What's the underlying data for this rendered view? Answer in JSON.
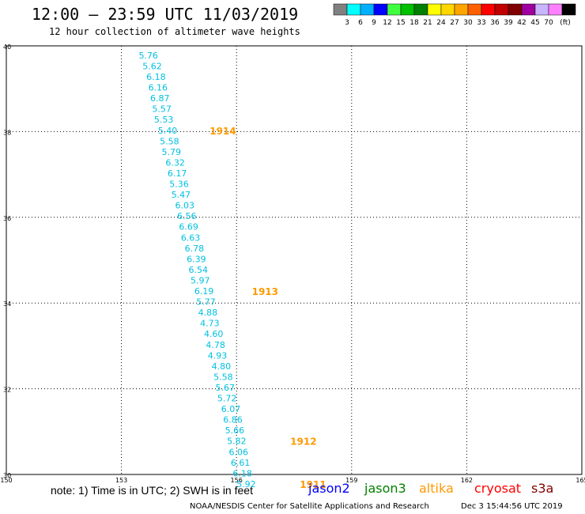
{
  "header": {
    "title": "12:00 – 23:59 UTC 11/03/2019",
    "subtitle": "12 hour collection of altimeter wave heights"
  },
  "legend": {
    "unit": "(ft)",
    "colors": [
      "#808080",
      "#00ffff",
      "#00b0ff",
      "#0000ff",
      "#40ff40",
      "#00c000",
      "#008000",
      "#ffff00",
      "#ffd700",
      "#ffa500",
      "#ff6000",
      "#ff0000",
      "#c00000",
      "#800000",
      "#a000a0",
      "#c8b4ff",
      "#ff80ff",
      "#000000"
    ],
    "labels": [
      "3",
      "6",
      "9",
      "12",
      "15",
      "18",
      "21",
      "24",
      "27",
      "30",
      "33",
      "36",
      "39",
      "42",
      "45",
      "70"
    ]
  },
  "axes": {
    "lat_labels": [
      "40",
      "38",
      "36",
      "34",
      "32",
      "30"
    ],
    "lon_labels": [
      "150",
      "153",
      "156",
      "159",
      "162",
      "165"
    ]
  },
  "track": {
    "color": "#00c0e0",
    "points": [
      {
        "lat": 39.78,
        "lon": 153.45,
        "v": "5.76"
      },
      {
        "lat": 39.53,
        "lon": 153.55,
        "v": "5.62"
      },
      {
        "lat": 39.28,
        "lon": 153.65,
        "v": "6.18"
      },
      {
        "lat": 39.03,
        "lon": 153.7,
        "v": "6.16"
      },
      {
        "lat": 38.78,
        "lon": 153.75,
        "v": "6.87"
      },
      {
        "lat": 38.53,
        "lon": 153.8,
        "v": "5.57"
      },
      {
        "lat": 38.28,
        "lon": 153.85,
        "v": "5.53"
      },
      {
        "lat": 38.03,
        "lon": 153.95,
        "v": "5.40"
      },
      {
        "lat": 37.78,
        "lon": 154.0,
        "v": "5.58"
      },
      {
        "lat": 37.53,
        "lon": 154.05,
        "v": "5.79"
      },
      {
        "lat": 37.28,
        "lon": 154.15,
        "v": "6.32"
      },
      {
        "lat": 37.03,
        "lon": 154.2,
        "v": "6.17"
      },
      {
        "lat": 36.78,
        "lon": 154.25,
        "v": "5.36"
      },
      {
        "lat": 36.53,
        "lon": 154.3,
        "v": "5.47"
      },
      {
        "lat": 36.28,
        "lon": 154.4,
        "v": "6.03"
      },
      {
        "lat": 36.03,
        "lon": 154.45,
        "v": "6.56"
      },
      {
        "lat": 35.78,
        "lon": 154.5,
        "v": "6.69"
      },
      {
        "lat": 35.53,
        "lon": 154.55,
        "v": "6.63"
      },
      {
        "lat": 35.28,
        "lon": 154.65,
        "v": "6.78"
      },
      {
        "lat": 35.03,
        "lon": 154.7,
        "v": "6.39"
      },
      {
        "lat": 34.78,
        "lon": 154.75,
        "v": "6.54"
      },
      {
        "lat": 34.53,
        "lon": 154.8,
        "v": "5.97"
      },
      {
        "lat": 34.28,
        "lon": 154.9,
        "v": "6.19"
      },
      {
        "lat": 34.03,
        "lon": 154.95,
        "v": "5.77"
      },
      {
        "lat": 33.78,
        "lon": 155.0,
        "v": "4.88"
      },
      {
        "lat": 33.53,
        "lon": 155.05,
        "v": "4.73"
      },
      {
        "lat": 33.28,
        "lon": 155.15,
        "v": "4.60"
      },
      {
        "lat": 33.03,
        "lon": 155.2,
        "v": "4.78"
      },
      {
        "lat": 32.78,
        "lon": 155.25,
        "v": "4.93"
      },
      {
        "lat": 32.53,
        "lon": 155.35,
        "v": "4.80"
      },
      {
        "lat": 32.28,
        "lon": 155.4,
        "v": "5.58"
      },
      {
        "lat": 32.03,
        "lon": 155.45,
        "v": "5.67"
      },
      {
        "lat": 31.78,
        "lon": 155.5,
        "v": "5.72"
      },
      {
        "lat": 31.53,
        "lon": 155.6,
        "v": "6.07"
      },
      {
        "lat": 31.28,
        "lon": 155.65,
        "v": "6.86"
      },
      {
        "lat": 31.03,
        "lon": 155.7,
        "v": "5.66"
      },
      {
        "lat": 30.78,
        "lon": 155.75,
        "v": "5.82"
      },
      {
        "lat": 30.53,
        "lon": 155.8,
        "v": "6.06"
      },
      {
        "lat": 30.28,
        "lon": 155.85,
        "v": "6.61"
      },
      {
        "lat": 30.03,
        "lon": 155.9,
        "v": "6.18"
      },
      {
        "lat": 29.78,
        "lon": 156.0,
        "v": "5.92"
      }
    ],
    "time_marks": [
      {
        "lat": 38.03,
        "lon": 155.3,
        "label": "1914"
      },
      {
        "lat": 34.28,
        "lon": 156.4,
        "label": "1913"
      },
      {
        "lat": 30.78,
        "lon": 157.4,
        "label": "1912"
      },
      {
        "lat": 29.78,
        "lon": 157.65,
        "label": "1911"
      }
    ],
    "time_color": "#ff9900"
  },
  "footer": {
    "note": "note: 1) Time is in UTC; 2) SWH is in feet",
    "satellites": [
      {
        "name": "jason2",
        "color": "#0000ff"
      },
      {
        "name": "jason3",
        "color": "#008000"
      },
      {
        "name": "altika",
        "color": "#ff9900"
      },
      {
        "name": "cryosat",
        "color": "#ff0000"
      },
      {
        "name": "s3a",
        "color": "#800000"
      }
    ],
    "credit": "NOAA/NESDIS Center for Satellite Applications and Research",
    "timestamp": "Dec  3 15:44:56 UTC 2019"
  }
}
